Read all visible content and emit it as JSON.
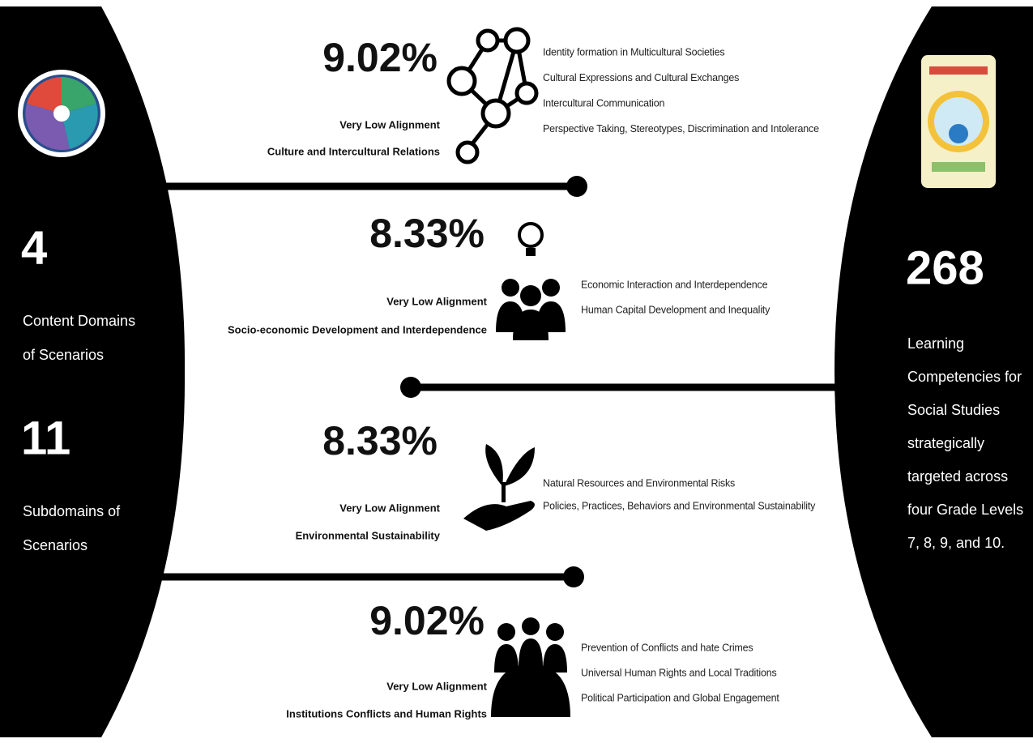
{
  "left": {
    "stats": [
      {
        "number": "4",
        "label": [
          "Content Domains",
          "of Scenarios"
        ]
      },
      {
        "number": "11",
        "label": [
          "Subdomains of",
          "Scenarios"
        ]
      }
    ]
  },
  "right": {
    "number": "268",
    "label": [
      "Learning",
      "Competencies for",
      "Social Studies",
      "strategically",
      "targeted across",
      "four Grade Levels",
      "7, 8, 9, and 10."
    ]
  },
  "domains": [
    {
      "percent": "9.02%",
      "alignment": "Very Low Alignment",
      "name": "Culture and Intercultural Relations",
      "subdomains": [
        "Identity formation in Multicultural Societies",
        "Cultural Expressions and Cultural Exchanges",
        "Intercultural Communication",
        "Perspective Taking, Stereotypes, Discrimination and Intolerance"
      ]
    },
    {
      "percent": "8.33%",
      "alignment": "Very Low Alignment",
      "name": "Socio-economic Development and Interdependence",
      "subdomains": [
        "Economic Interaction and Interdependence",
        "Human Capital Development and Inequality"
      ]
    },
    {
      "percent": "8.33%",
      "alignment": "Very Low Alignment",
      "name": "Environmental Sustainability",
      "subdomains": [
        "Natural Resources and Environmental Risks",
        "Policies, Practices, Behaviors and Environmental Sustainability"
      ]
    },
    {
      "percent": "9.02%",
      "alignment": "Very Low Alignment",
      "name": "Institutions Conflicts and Human Rights",
      "subdomains": [
        "Prevention of Conflicts and hate Crimes",
        "Universal Human Rights and Local Traditions",
        "Political Participation and Global Engagement"
      ]
    }
  ]
}
